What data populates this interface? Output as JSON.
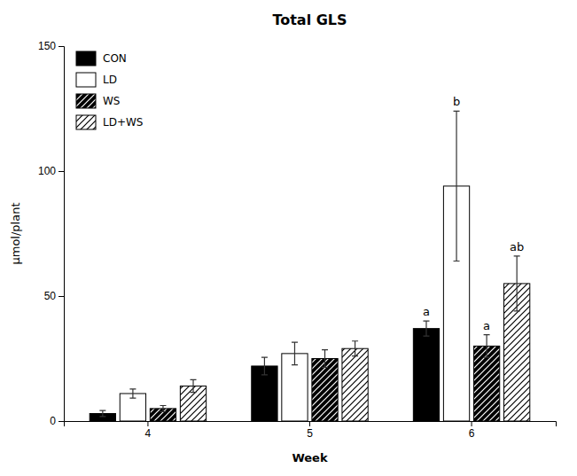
{
  "chart_data": {
    "type": "bar",
    "title": "Total GLS",
    "x_label": "Week",
    "y_label": "μmol/plant",
    "categories": [
      "4",
      "5",
      "6"
    ],
    "series": [
      {
        "name": "CON",
        "color": "#000000",
        "values": [
          3.0,
          22.0,
          37.0
        ],
        "errors": [
          1.2,
          3.5,
          3.0
        ]
      },
      {
        "name": "LD",
        "color": "#ffffff",
        "values": [
          11.0,
          27.0,
          94.0
        ],
        "errors": [
          1.8,
          4.5,
          30.0
        ]
      },
      {
        "name": "WS",
        "color": "#000000",
        "values": [
          5.0,
          25.0,
          30.0
        ],
        "errors": [
          1.2,
          3.5,
          4.5
        ]
      },
      {
        "name": "LD+WS",
        "color": "#ffffff",
        "values": [
          14.0,
          29.0,
          55.0
        ],
        "errors": [
          2.5,
          3.0,
          11.0
        ]
      }
    ],
    "annotations": [
      {
        "text": "a",
        "series": "CON",
        "category": "6"
      },
      {
        "text": "b",
        "series": "LD",
        "category": "6"
      },
      {
        "text": "a",
        "series": "WS",
        "category": "6"
      },
      {
        "text": "ab",
        "series": "LD+WS",
        "category": "6"
      }
    ],
    "ylim": [
      0,
      150
    ],
    "yticks": [
      0,
      50,
      100,
      150
    ],
    "grid": false,
    "legend": "upper left"
  }
}
